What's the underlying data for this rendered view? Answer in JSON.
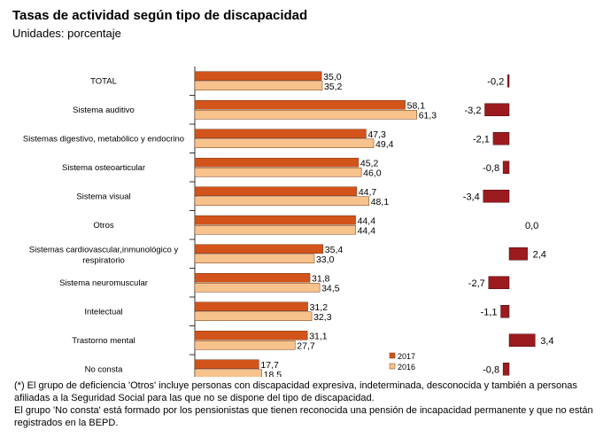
{
  "title": "Tasas de actividad según tipo de discapacidad",
  "subtitle": "Unidades: porcentaje",
  "chart_data": [
    {
      "type": "bar",
      "orientation": "horizontal",
      "categories": [
        "TOTAL",
        "Sistema auditivo",
        "Sistemas digestivo, metabólico y endocrino",
        "Sistema osteoarticular",
        "Sistema visual",
        "Otros",
        "Sistemas cardiovascular,inmunológico y respiratorio",
        "Sistema neuromuscular",
        "Intelectual",
        "Trastorno mental",
        "No consta"
      ],
      "series": [
        {
          "name": "2017",
          "values": [
            35.0,
            58.1,
            47.3,
            45.2,
            44.7,
            44.4,
            35.4,
            31.8,
            31.2,
            31.1,
            17.7
          ],
          "labels": [
            "35,0",
            "58,1",
            "47,3",
            "45,2",
            "44,7",
            "44,4",
            "35,4",
            "31,8",
            "31,2",
            "31,1",
            "17,7"
          ]
        },
        {
          "name": "2016",
          "values": [
            35.2,
            61.3,
            49.4,
            46.0,
            48.1,
            44.4,
            33.0,
            34.5,
            32.3,
            27.7,
            18.5
          ],
          "labels": [
            "35,2",
            "61,3",
            "49,4",
            "46,0",
            "48,1",
            "44,4",
            "33,0",
            "34,5",
            "32,3",
            "27,7",
            "18,5"
          ]
        }
      ],
      "legend_position": "bottom-right",
      "grid": false,
      "colors": {
        "2017": "#D2541B",
        "2016": "#F7C28C"
      }
    },
    {
      "type": "bar",
      "orientation": "horizontal",
      "categories": [
        "TOTAL",
        "Sistema auditivo",
        "Sistemas digestivo, metabólico y endocrino",
        "Sistema osteoarticular",
        "Sistema visual",
        "Otros",
        "Sistemas cardiovascular,inmunológico y respiratorio",
        "Sistema neuromuscular",
        "Intelectual",
        "Trastorno mental",
        "No consta"
      ],
      "values": [
        -0.2,
        -3.2,
        -2.1,
        -0.8,
        -3.4,
        0.0,
        2.4,
        -2.7,
        -1.1,
        3.4,
        -0.8
      ],
      "labels": [
        "-0,2",
        "-3,2",
        "-2,1",
        "-0,8",
        "-3,4",
        "0,0",
        "2,4",
        "-2,7",
        "-1,1",
        "3,4",
        "-0,8"
      ],
      "grid": false,
      "colors": {
        "bar": "#9B1B1E"
      }
    }
  ],
  "footnotes": [
    "(*) El grupo de deficiencia 'Otros' incluye personas con discapacidad expresiva, indeterminada, desconocida y también a personas afiliadas a la Seguridad Social para las que no se dispone del tipo de discapacidad.",
    "El grupo 'No consta' está formado por los pensionistas que tienen reconocida una pensión de incapacidad permanente y que no están registrados en la BEPD."
  ]
}
